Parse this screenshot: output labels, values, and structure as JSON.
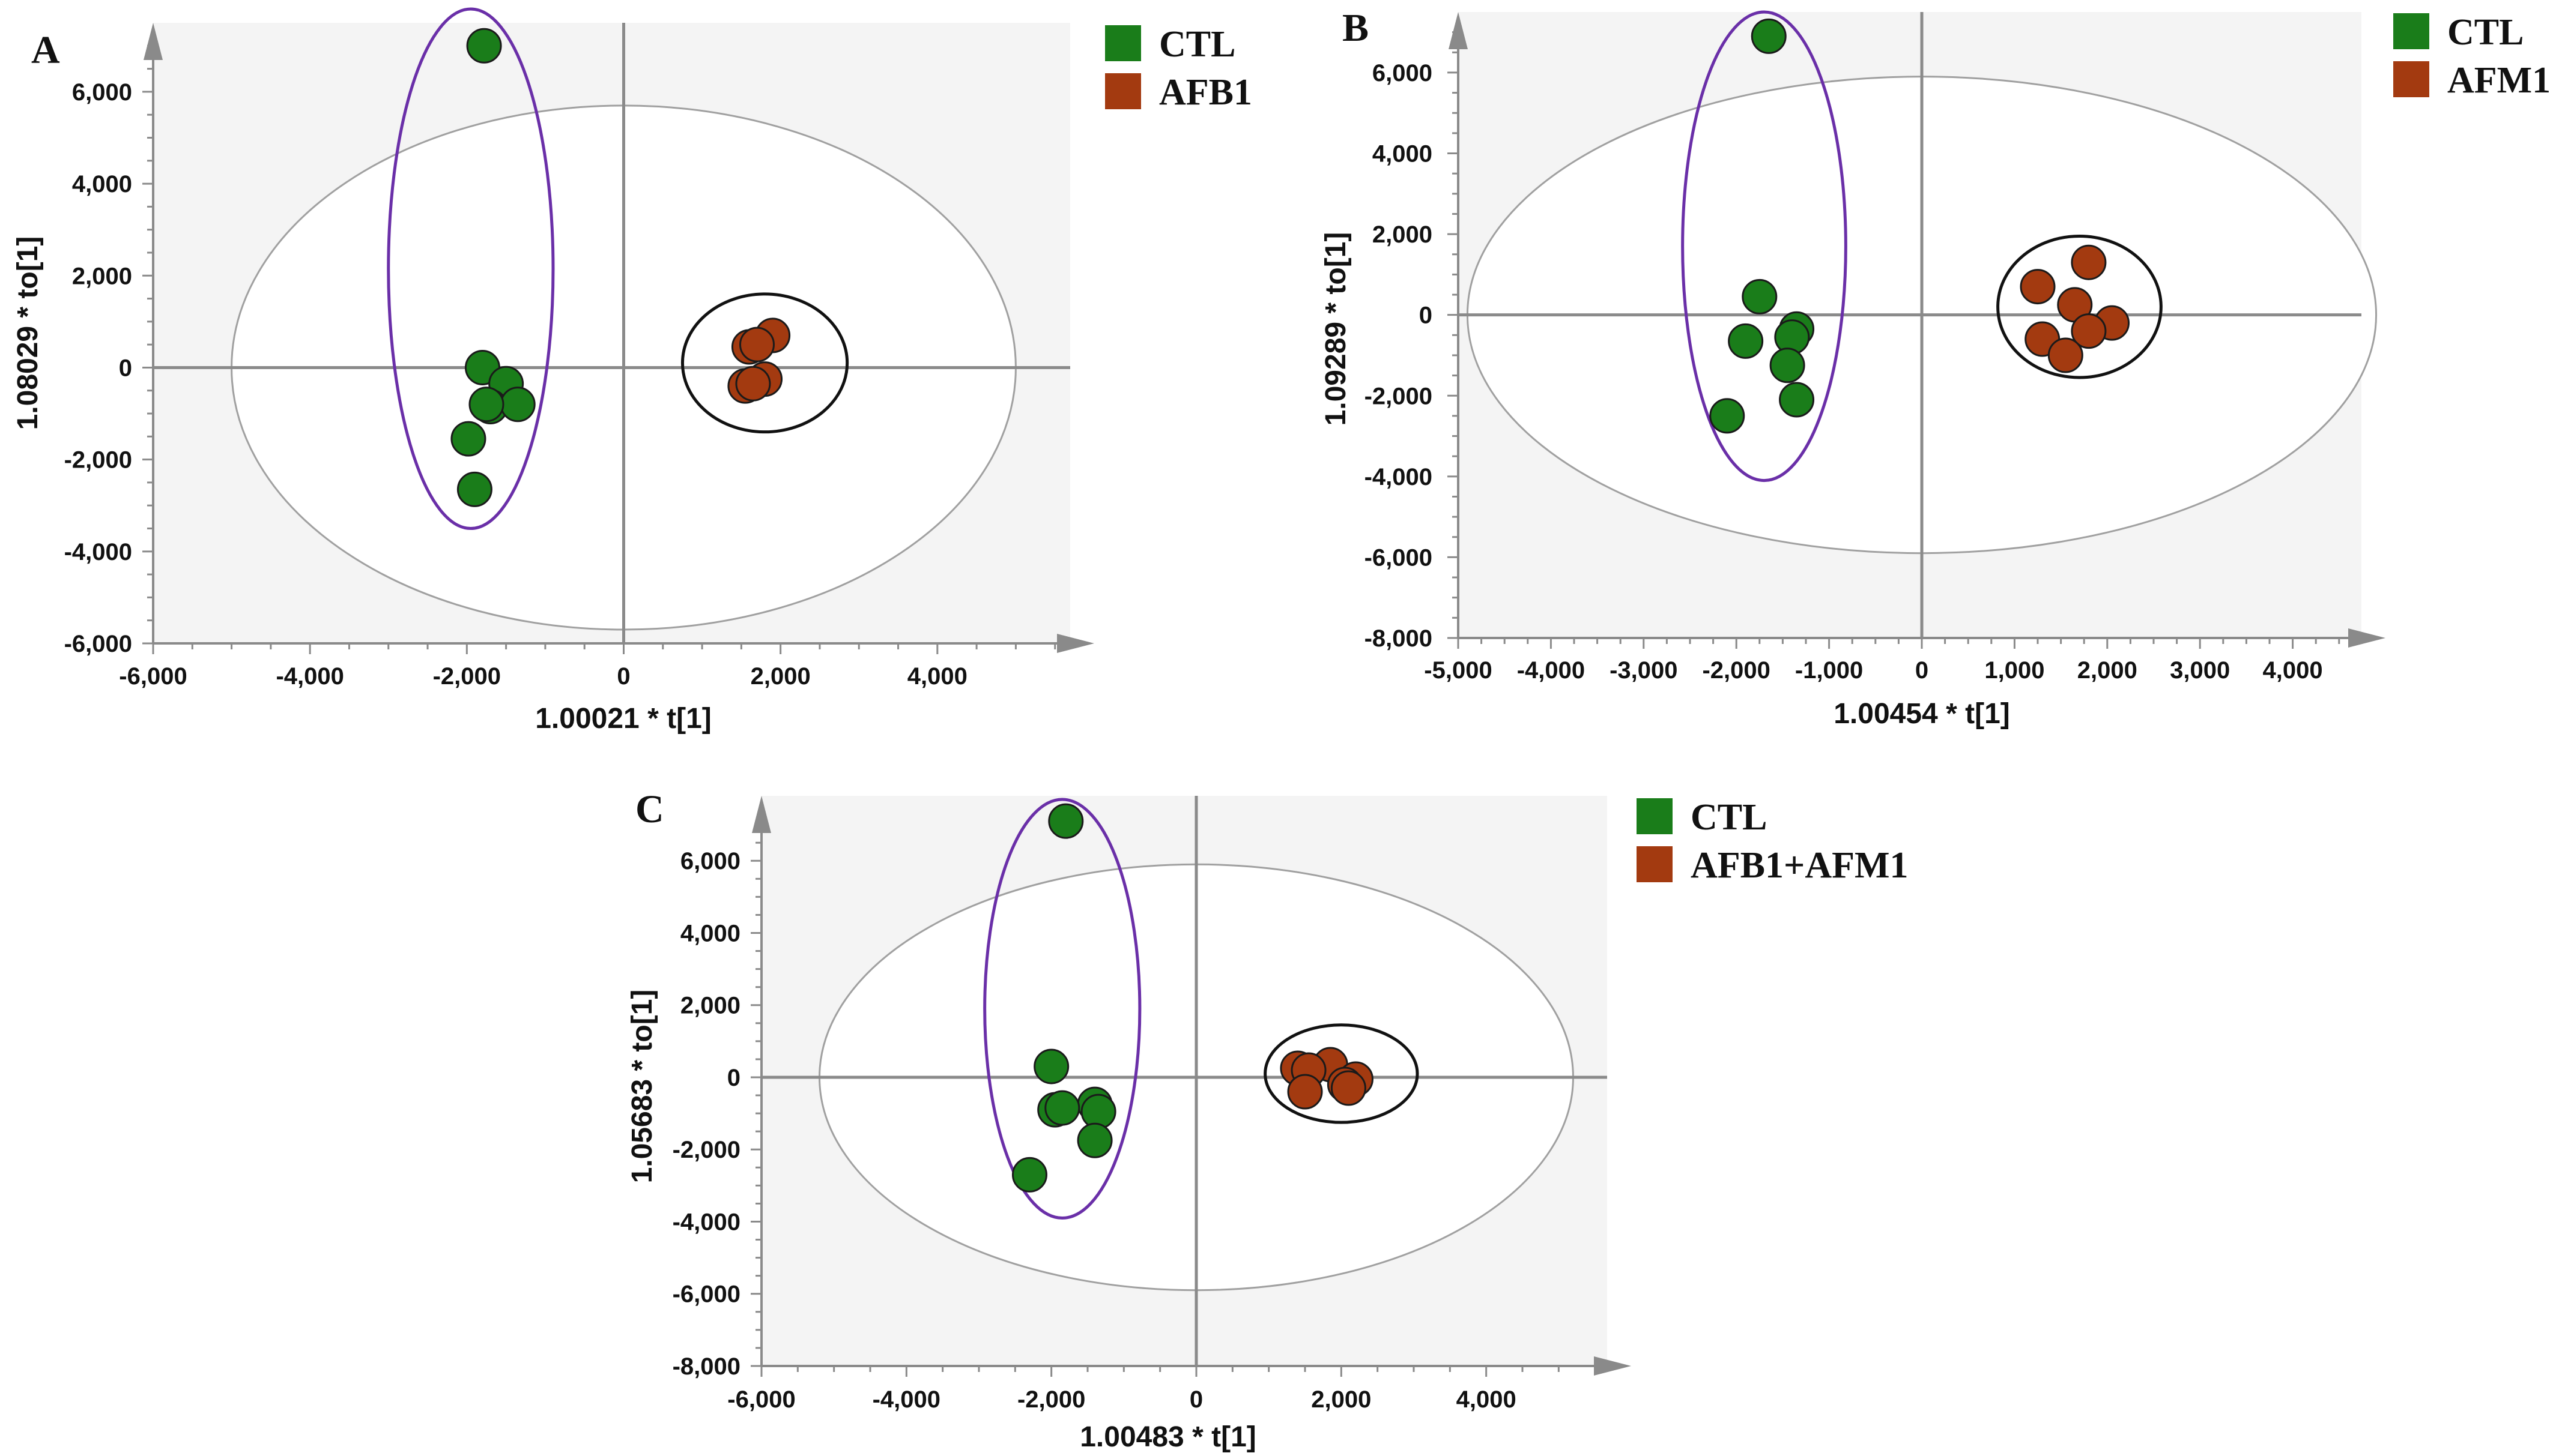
{
  "chart_data": [
    {
      "type": "scatter",
      "panel": "A",
      "title": "",
      "xlabel": "1.00021 * t[1]",
      "ylabel": "1.08029 * to[1]",
      "xlim": [
        -6000,
        6000
      ],
      "ylim": [
        -6000,
        7500
      ],
      "xticks": [
        -6000,
        -4000,
        -2000,
        0,
        2000,
        4000
      ],
      "xtick_labels": [
        "-6,000",
        "-4,000",
        "-2,000",
        "0",
        "2,000",
        "4,000"
      ],
      "yticks": [
        -6000,
        -4000,
        -2000,
        0,
        2000,
        4000,
        6000
      ],
      "ytick_labels": [
        "-6,000",
        "-4,000",
        "-2,000",
        "0",
        "2,000",
        "4,000",
        "6,000"
      ],
      "hotelling_ellipse": {
        "cx": 0,
        "cy": 0,
        "rx": 5000,
        "ry": 5700
      },
      "group_ellipses": [
        {
          "group": "CTL",
          "color": "#6a2fa8",
          "cx": -1950,
          "cy": 2150,
          "rx": 1050,
          "ry": 5650
        },
        {
          "group": "AFB1",
          "color": "#111111",
          "cx": 1800,
          "cy": 100,
          "rx": 1050,
          "ry": 1500
        }
      ],
      "series": [
        {
          "name": "CTL",
          "color": "#1a7d1a",
          "x": [
            -1780,
            -1800,
            -1500,
            -1700,
            -1350,
            -1750,
            -1980,
            -1900
          ],
          "y": [
            7000,
            0,
            -350,
            -850,
            -800,
            -800,
            -1550,
            -2650
          ]
        },
        {
          "name": "AFB1",
          "color": "#a33a10",
          "x": [
            1600,
            1900,
            1700,
            1800,
            1550,
            1650
          ],
          "y": [
            450,
            700,
            500,
            -250,
            -400,
            -350
          ]
        }
      ]
    },
    {
      "type": "scatter",
      "panel": "B",
      "title": "",
      "xlabel": "1.00454 * t[1]",
      "ylabel": "1.09289 * to[1]",
      "xlim": [
        -5000,
        5000
      ],
      "ylim": [
        -8000,
        7500
      ],
      "xticks": [
        -5000,
        -4000,
        -3000,
        -2000,
        -1000,
        0,
        1000,
        2000,
        3000,
        4000
      ],
      "xtick_labels": [
        "-5,000",
        "-4,000",
        "-3,000",
        "-2,000",
        "-1,000",
        "0",
        "1,000",
        "2,000",
        "3,000",
        "4,000"
      ],
      "yticks": [
        -8000,
        -6000,
        -4000,
        -2000,
        0,
        2000,
        4000,
        6000
      ],
      "ytick_labels": [
        "-8,000",
        "-6,000",
        "-4,000",
        "-2,000",
        "0",
        "2,000",
        "4,000",
        "6,000"
      ],
      "hotelling_ellipse": {
        "cx": 0,
        "cy": 0,
        "rx": 4900,
        "ry": 5900
      },
      "group_ellipses": [
        {
          "group": "CTL",
          "color": "#6a2fa8",
          "cx": -1700,
          "cy": 1700,
          "rx": 880,
          "ry": 5800
        },
        {
          "group": "AFM1",
          "color": "#111111",
          "cx": 1700,
          "cy": 200,
          "rx": 880,
          "ry": 1750
        }
      ],
      "series": [
        {
          "name": "CTL",
          "color": "#1a7d1a",
          "x": [
            -1650,
            -1750,
            -1350,
            -1900,
            -1400,
            -1450,
            -1350,
            -2100
          ],
          "y": [
            6900,
            450,
            -350,
            -650,
            -550,
            -1250,
            -2100,
            -2500
          ]
        },
        {
          "name": "AFM1",
          "color": "#a33a10",
          "x": [
            1800,
            1250,
            1650,
            2050,
            1800,
            1300,
            1550
          ],
          "y": [
            1300,
            700,
            250,
            -200,
            -400,
            -600,
            -1000
          ]
        }
      ]
    },
    {
      "type": "scatter",
      "panel": "C",
      "title": "",
      "xlabel": "1.00483 * t[1]",
      "ylabel": "1.05683 * to[1]",
      "xlim": [
        -6000,
        6000
      ],
      "ylim": [
        -8000,
        7800
      ],
      "xticks": [
        -6000,
        -4000,
        -2000,
        0,
        2000,
        4000
      ],
      "xtick_labels": [
        "-6,000",
        "-4,000",
        "-2,000",
        "0",
        "2,000",
        "4,000"
      ],
      "yticks": [
        -8000,
        -6000,
        -4000,
        -2000,
        0,
        2000,
        4000,
        6000
      ],
      "ytick_labels": [
        "-8,000",
        "-6,000",
        "-4,000",
        "-2,000",
        "0",
        "2,000",
        "4,000",
        "6,000"
      ],
      "hotelling_ellipse": {
        "cx": 0,
        "cy": 0,
        "rx": 5200,
        "ry": 5900
      },
      "group_ellipses": [
        {
          "group": "CTL",
          "color": "#6a2fa8",
          "cx": -1850,
          "cy": 1900,
          "rx": 1070,
          "ry": 5800
        },
        {
          "group": "AFB1+AFM1",
          "color": "#111111",
          "cx": 2000,
          "cy": 100,
          "rx": 1050,
          "ry": 1350
        }
      ],
      "series": [
        {
          "name": "CTL",
          "color": "#1a7d1a",
          "x": [
            -1800,
            -2000,
            -1400,
            -1950,
            -1850,
            -1350,
            -1400,
            -2300
          ],
          "y": [
            7100,
            300,
            -750,
            -900,
            -850,
            -950,
            -1750,
            -2700
          ]
        },
        {
          "name": "AFB1+AFM1",
          "color": "#a33a10",
          "x": [
            1850,
            1400,
            1550,
            2200,
            2050,
            1500,
            2100
          ],
          "y": [
            350,
            250,
            200,
            -50,
            -200,
            -400,
            -300
          ]
        }
      ]
    }
  ],
  "figure": {
    "panels": [
      {
        "letter": "A",
        "legend": [
          {
            "label": "CTL",
            "color": "#1a7d1a"
          },
          {
            "label": "AFB1",
            "color": "#a33a10"
          }
        ]
      },
      {
        "letter": "B",
        "legend": [
          {
            "label": "CTL",
            "color": "#1a7d1a"
          },
          {
            "label": "AFM1",
            "color": "#a33a10"
          }
        ]
      },
      {
        "letter": "C",
        "legend": [
          {
            "label": "CTL",
            "color": "#1a7d1a"
          },
          {
            "label": "AFB1+AFM1",
            "color": "#a33a10"
          }
        ]
      }
    ],
    "colors": {
      "plot_background": "#f4f4f4",
      "axis": "#8a8a8a",
      "hotelling": "#a0a0a0"
    }
  }
}
